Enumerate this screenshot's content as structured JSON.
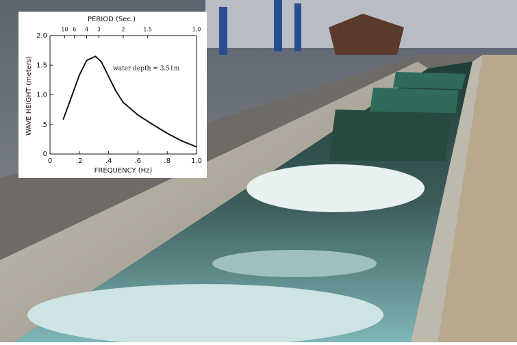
{
  "chart_data": {
    "type": "line",
    "title": "PERIOD (Sec.)",
    "x_label": "FREQUENCY (Hz)",
    "y_label": "WAVE HEIGHT (meters)",
    "annotation": "water depth = 3.51m",
    "x": [
      0.09,
      0.2,
      0.25,
      0.31,
      0.35,
      0.4,
      0.45,
      0.5,
      0.6,
      0.7,
      0.8,
      0.9,
      1.0
    ],
    "values": [
      0.58,
      1.33,
      1.58,
      1.65,
      1.56,
      1.31,
      1.06,
      0.87,
      0.66,
      0.5,
      0.35,
      0.22,
      0.12
    ],
    "color": "#111111",
    "xlim": [
      0,
      1
    ],
    "xticks": [
      0,
      {
        "value": 0.2,
        "label": ".2"
      },
      {
        "value": 0.4,
        "label": ".4"
      },
      {
        "value": 0.6,
        "label": ".6"
      },
      {
        "value": 0.8,
        "label": ".8"
      },
      {
        "value": 1,
        "label": "1.0"
      }
    ],
    "ylim": [
      0,
      2
    ],
    "yticks": [
      0,
      {
        "value": 0.5,
        "label": ".5"
      },
      {
        "value": 1,
        "label": "1.0"
      },
      {
        "value": 1.5,
        "label": "1.5"
      },
      {
        "value": 2,
        "label": "2.0"
      }
    ],
    "x2scale": "reciprocal",
    "x2ticks": [
      10,
      6,
      4,
      3,
      2,
      1.5,
      {
        "value": 1,
        "label": "1.0"
      }
    ]
  }
}
